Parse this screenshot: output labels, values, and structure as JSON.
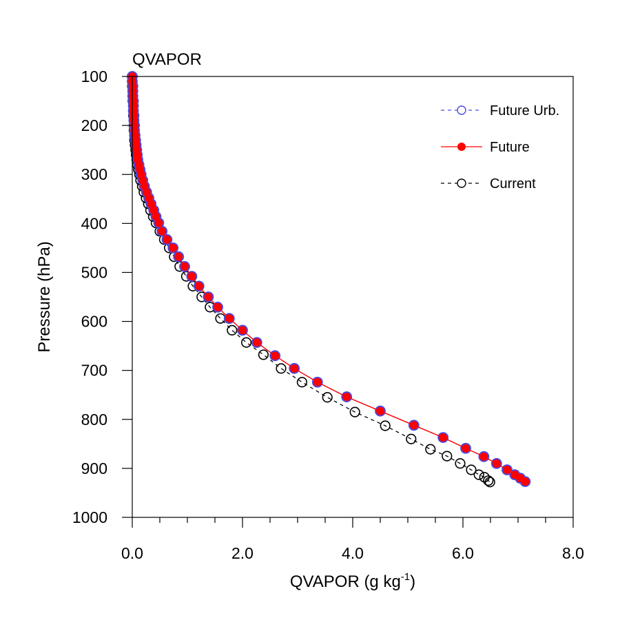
{
  "chart_data": {
    "type": "line",
    "title": "QVAPOR",
    "xlabel": "QVAPOR (g kg",
    "xlabel_superscript": "-1",
    "xlabel_suffix": ")",
    "ylabel": "Pressure (hPa)",
    "xlim": [
      0,
      8
    ],
    "ylim": [
      100,
      1000
    ],
    "y_inverted": true,
    "x_ticks": [
      0,
      2,
      4,
      6,
      8
    ],
    "x_tick_labels": [
      "0.0",
      "2.0",
      "4.0",
      "6.0",
      "8.0"
    ],
    "x_minor_step": 0.5,
    "y_ticks": [
      100,
      200,
      300,
      400,
      500,
      600,
      700,
      800,
      900,
      1000
    ],
    "y_tick_labels": [
      "100",
      "200",
      "300",
      "400",
      "500",
      "600",
      "700",
      "800",
      "900",
      "1000"
    ],
    "grid": false,
    "legend_position": "top-right",
    "series": [
      {
        "name": "Future Urb.",
        "color": "#4a4ae0",
        "line_style": "dashed",
        "marker": "open-circle",
        "pressure": [
          100,
          110,
          120,
          130,
          140,
          150,
          160,
          170,
          180,
          190,
          200,
          210,
          220,
          230,
          240,
          250,
          260,
          270,
          280,
          290,
          300,
          312,
          324,
          336,
          348,
          360,
          373,
          386,
          399,
          416,
          433,
          450,
          468,
          488,
          508,
          528,
          550,
          571,
          594,
          618,
          643,
          670,
          696,
          724,
          754,
          783,
          812,
          837,
          859,
          876,
          890,
          903,
          913,
          920,
          927
        ],
        "values": [
          0.0,
          0.0,
          0.01,
          0.01,
          0.01,
          0.02,
          0.02,
          0.02,
          0.03,
          0.03,
          0.04,
          0.04,
          0.05,
          0.06,
          0.07,
          0.08,
          0.09,
          0.1,
          0.12,
          0.14,
          0.16,
          0.19,
          0.22,
          0.26,
          0.3,
          0.34,
          0.39,
          0.43,
          0.48,
          0.54,
          0.63,
          0.74,
          0.84,
          0.95,
          1.08,
          1.21,
          1.38,
          1.55,
          1.76,
          2.0,
          2.26,
          2.59,
          2.94,
          3.36,
          3.89,
          4.5,
          5.11,
          5.64,
          6.05,
          6.38,
          6.61,
          6.8,
          6.94,
          7.04,
          7.13
        ]
      },
      {
        "name": "Future",
        "color": "#ff0000",
        "line_style": "solid",
        "marker": "filled-circle",
        "pressure": [
          100,
          110,
          120,
          130,
          140,
          150,
          160,
          170,
          180,
          190,
          200,
          210,
          220,
          230,
          240,
          250,
          260,
          270,
          280,
          290,
          300,
          312,
          324,
          336,
          348,
          360,
          373,
          386,
          399,
          416,
          433,
          450,
          468,
          488,
          508,
          528,
          550,
          571,
          594,
          618,
          643,
          670,
          696,
          724,
          754,
          783,
          812,
          837,
          859,
          876,
          890,
          903,
          913,
          920,
          927
        ],
        "values": [
          0.0,
          0.0,
          0.01,
          0.01,
          0.01,
          0.02,
          0.02,
          0.02,
          0.03,
          0.03,
          0.04,
          0.04,
          0.05,
          0.06,
          0.07,
          0.08,
          0.09,
          0.1,
          0.12,
          0.14,
          0.16,
          0.19,
          0.22,
          0.26,
          0.3,
          0.34,
          0.39,
          0.43,
          0.48,
          0.54,
          0.63,
          0.74,
          0.84,
          0.95,
          1.08,
          1.21,
          1.38,
          1.55,
          1.76,
          2.0,
          2.26,
          2.59,
          2.94,
          3.36,
          3.89,
          4.5,
          5.11,
          5.64,
          6.05,
          6.38,
          6.61,
          6.8,
          6.94,
          7.04,
          7.13
        ]
      },
      {
        "name": "Current",
        "color": "#000000",
        "line_style": "dashed",
        "marker": "open-circle",
        "pressure": [
          100,
          110,
          120,
          130,
          140,
          150,
          160,
          170,
          180,
          190,
          200,
          210,
          220,
          230,
          240,
          250,
          260,
          270,
          280,
          290,
          300,
          312,
          324,
          336,
          348,
          360,
          373,
          386,
          399,
          416,
          433,
          450,
          468,
          488,
          508,
          528,
          550,
          571,
          594,
          618,
          643,
          668,
          696,
          724,
          755,
          785,
          813,
          840,
          861,
          875,
          890,
          903,
          913,
          918,
          925,
          928
        ],
        "values": [
          0.0,
          0.0,
          0.0,
          0.01,
          0.01,
          0.01,
          0.02,
          0.02,
          0.02,
          0.03,
          0.03,
          0.03,
          0.04,
          0.04,
          0.05,
          0.06,
          0.07,
          0.08,
          0.09,
          0.11,
          0.13,
          0.15,
          0.18,
          0.21,
          0.25,
          0.29,
          0.33,
          0.38,
          0.43,
          0.5,
          0.58,
          0.67,
          0.76,
          0.86,
          0.98,
          1.1,
          1.26,
          1.41,
          1.6,
          1.81,
          2.07,
          2.38,
          2.7,
          3.08,
          3.54,
          4.04,
          4.59,
          5.06,
          5.41,
          5.71,
          5.95,
          6.15,
          6.29,
          6.39,
          6.46,
          6.49
        ]
      }
    ]
  }
}
